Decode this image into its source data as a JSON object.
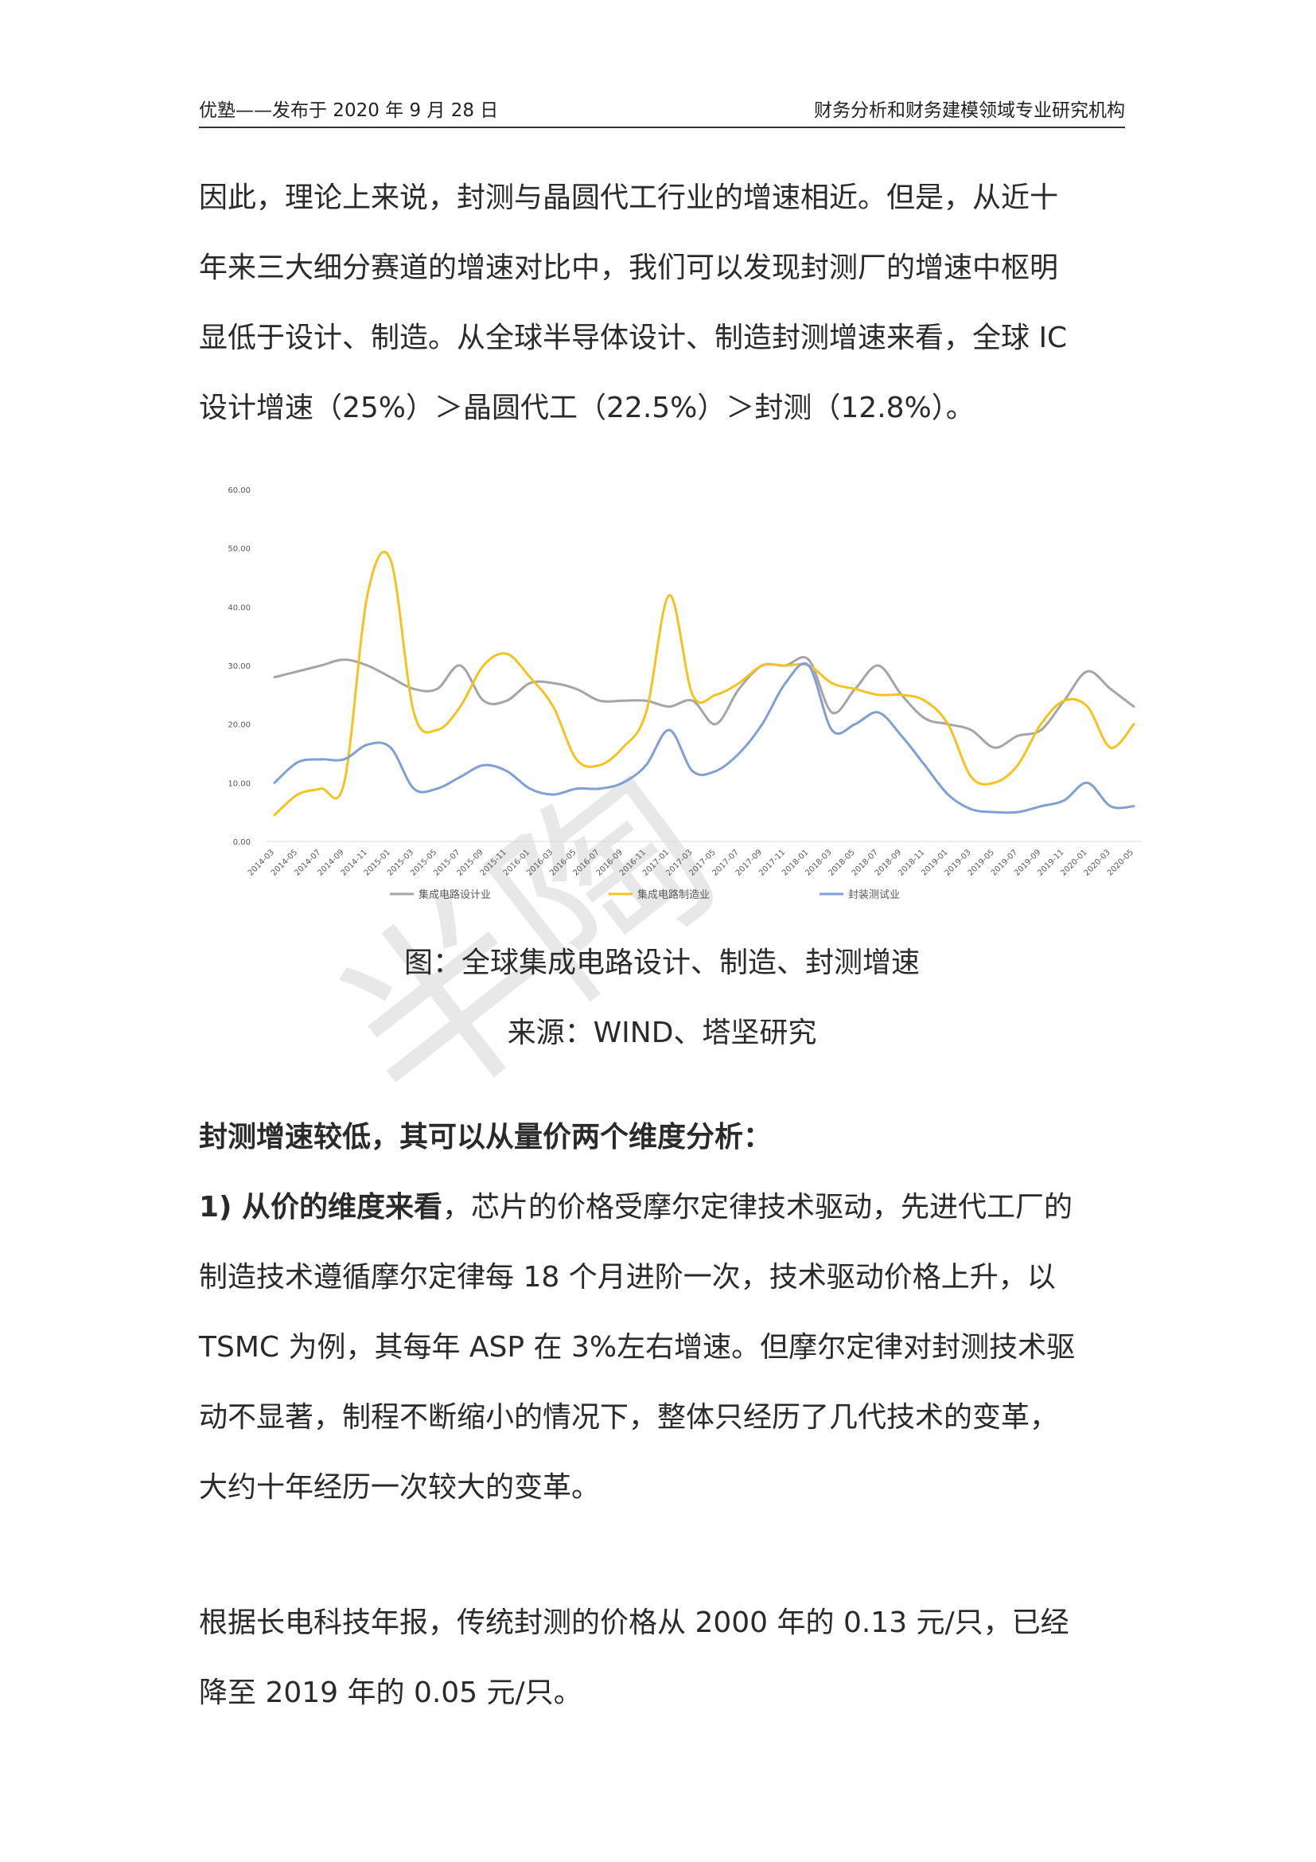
{
  "header": {
    "left": "优塾——发布于 2020 年 9 月 28 日",
    "right": "财务分析和财务建模领域专业研究机构"
  },
  "intro": {
    "lines": [
      "因此，理论上来说，封测与晶圆代工行业的增速相近。但是，从近十",
      "年来三大细分赛道的增速对比中，我们可以发现封测厂的增速中枢明",
      "显低于设计、制造。从全球半导体设计、制造封测增速来看，全球 IC",
      "设计增速（25%）＞晶圆代工（22.5%）＞封测（12.8%）。"
    ]
  },
  "figure": {
    "caption": "图：全球集成电路设计、制造、封测增速",
    "source": "来源：WIND、塔坚研究"
  },
  "section": {
    "heading": "封测增速较低，其可以从量价两个维度分析：",
    "point1_bold": "1) 从价的维度来看",
    "point1_lines": [
      "，芯片的价格受摩尔定律技术驱动，先进代工厂的",
      "制造技术遵循摩尔定律每 18 个月进阶一次，技术驱动价格上升，以",
      "TSMC 为例，其每年 ASP 在 3%左右增速。但摩尔定律对封测技术驱",
      "动不显著，制程不断缩小的情况下，整体只经历了几代技术的变革，",
      "大约十年经历一次较大的变革。"
    ],
    "para2_lines": [
      "根据长电科技年报，传统封测的价格从 2000 年的 0.13 元/只，已经",
      "降至 2019 年的 0.05 元/只。"
    ]
  },
  "watermark": "半陶",
  "chart_data": {
    "type": "line",
    "title": "",
    "xlabel": "",
    "ylabel": "",
    "ylim": [
      0,
      60
    ],
    "yticks": [
      "0.00",
      "10.00",
      "20.00",
      "30.00",
      "40.00",
      "50.00",
      "60.00"
    ],
    "grid": false,
    "legend_position": "bottom",
    "categories": [
      "2014-03",
      "2014-05",
      "2014-07",
      "2014-09",
      "2014-11",
      "2015-01",
      "2015-03",
      "2015-05",
      "2015-07",
      "2015-09",
      "2015-11",
      "2016-01",
      "2016-03",
      "2016-05",
      "2016-07",
      "2016-09",
      "2016-11",
      "2017-01",
      "2017-03",
      "2017-05",
      "2017-07",
      "2017-09",
      "2017-11",
      "2018-01",
      "2018-03",
      "2018-05",
      "2018-07",
      "2018-09",
      "2018-11",
      "2019-01",
      "2019-03",
      "2019-05",
      "2019-07",
      "2019-09",
      "2019-11",
      "2020-01",
      "2020-03",
      "2020-05"
    ],
    "series": [
      {
        "name": "集成电路设计业",
        "color": "#a5a5a5",
        "values": [
          28,
          29,
          30,
          31,
          30,
          28,
          26,
          26,
          30,
          24,
          24,
          27,
          27,
          26,
          24,
          24,
          24,
          23,
          24,
          20,
          26,
          30,
          30,
          31,
          22,
          26,
          30,
          25,
          21,
          20,
          19,
          16,
          18,
          19,
          24,
          29,
          26,
          23
        ]
      },
      {
        "name": "集成电路制造业",
        "color": "#f3c320",
        "values": [
          4.5,
          8,
          9,
          10,
          42,
          48,
          22,
          19,
          23,
          30,
          32,
          28,
          23,
          14,
          13,
          16,
          22,
          42,
          25,
          25,
          27,
          30,
          30,
          30,
          27,
          26,
          25,
          25,
          24,
          20,
          11,
          10,
          13,
          20,
          24,
          23,
          16,
          20
        ]
      },
      {
        "name": "封装测试业",
        "color": "#7f9fd5",
        "values": [
          10,
          13.5,
          14,
          14,
          16.5,
          16,
          9,
          9,
          11,
          13,
          12,
          9,
          8,
          9,
          9,
          10,
          13,
          19,
          12,
          12,
          15,
          20,
          27,
          30,
          19,
          20,
          22,
          18,
          13,
          8,
          5.5,
          5,
          5,
          6,
          7,
          10,
          6,
          6
        ]
      }
    ]
  }
}
